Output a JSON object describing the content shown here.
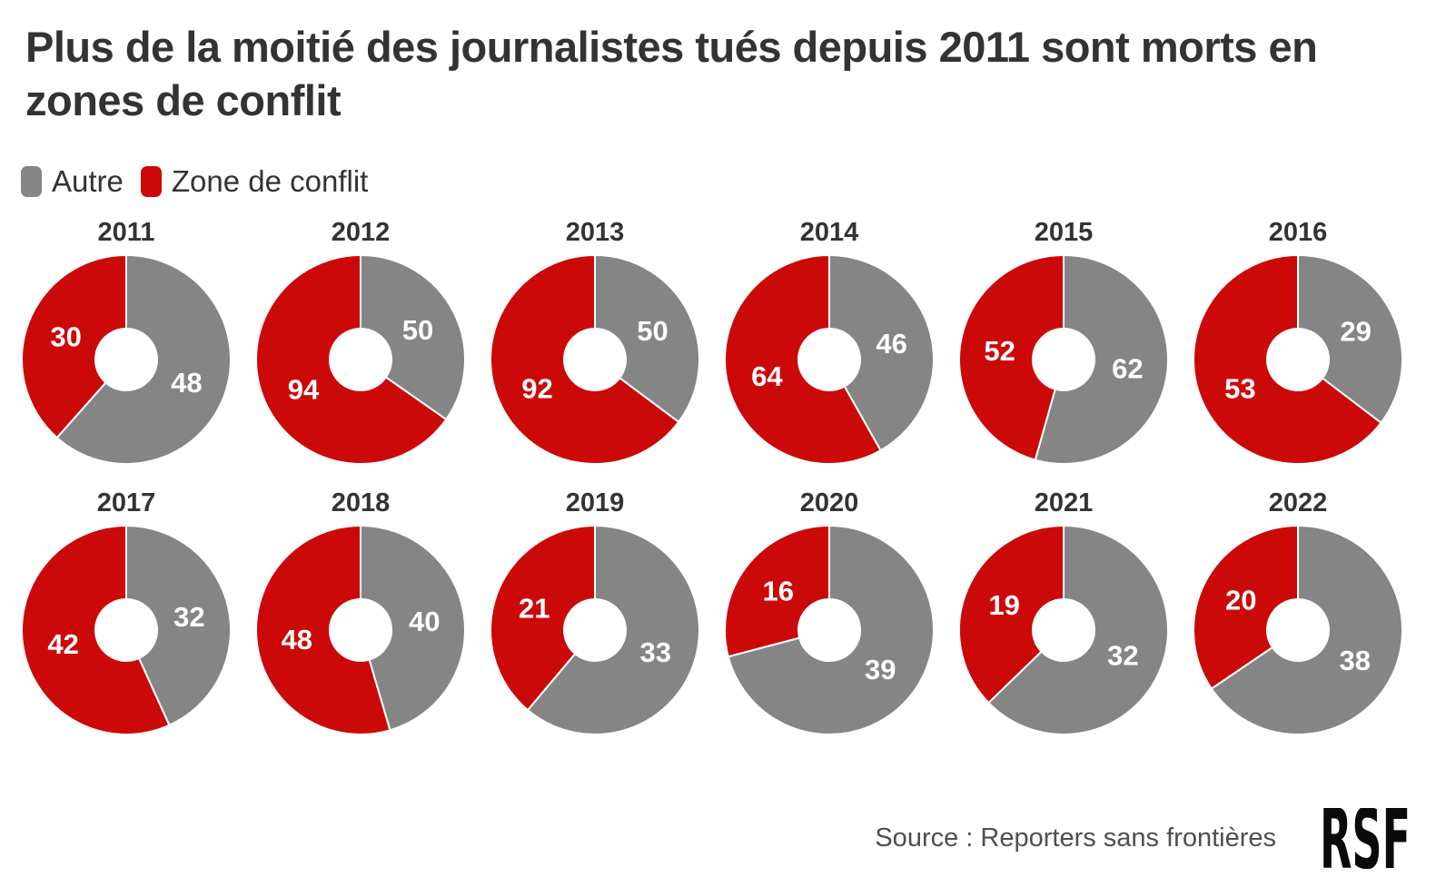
{
  "page": {
    "title": "Plus de la moitié des journalistes tués depuis 2011 sont morts en zones de conflit",
    "source_label": "Source : Reporters sans frontières",
    "logo_text": "RSF"
  },
  "legend": {
    "items": [
      {
        "label": "Autre",
        "color": "#858585"
      },
      {
        "label": "Zone de conflit",
        "color": "#cc0909"
      }
    ]
  },
  "chart_data": {
    "type": "pie",
    "variant": "donut-small-multiples",
    "title": "Plus de la moitié des journalistes tués depuis 2011 sont morts en zones de conflit",
    "legend": [
      "Autre",
      "Zone de conflit"
    ],
    "legend_position": "top-left",
    "colors": {
      "autre": "#858585",
      "conflit": "#cc0909",
      "value_labels": "#ffffff"
    },
    "slice_order": "Autre first, clockwise from 12 o'clock, Zone de conflit fills remainder",
    "source": "Source : Reporters sans frontières",
    "charts": [
      {
        "year": "2011",
        "autre": 48,
        "conflit": 30
      },
      {
        "year": "2012",
        "autre": 50,
        "conflit": 94
      },
      {
        "year": "2013",
        "autre": 50,
        "conflit": 92
      },
      {
        "year": "2014",
        "autre": 46,
        "conflit": 64
      },
      {
        "year": "2015",
        "autre": 62,
        "conflit": 52
      },
      {
        "year": "2016",
        "autre": 29,
        "conflit": 53
      },
      {
        "year": "2017",
        "autre": 32,
        "conflit": 42
      },
      {
        "year": "2018",
        "autre": 40,
        "conflit": 48
      },
      {
        "year": "2019",
        "autre": 33,
        "conflit": 21
      },
      {
        "year": "2020",
        "autre": 39,
        "conflit": 16
      },
      {
        "year": "2021",
        "autre": 32,
        "conflit": 19
      },
      {
        "year": "2022",
        "autre": 38,
        "conflit": 20
      }
    ]
  }
}
